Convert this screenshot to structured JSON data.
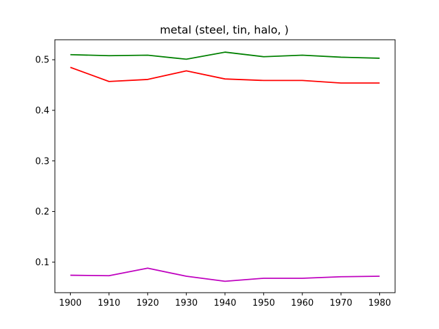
{
  "chart_data": {
    "type": "line",
    "title": "metal (steel, tin, halo, )",
    "xlabel": "",
    "ylabel": "",
    "x": [
      1900,
      1910,
      1920,
      1930,
      1940,
      1950,
      1960,
      1970,
      1980
    ],
    "x_ticks": [
      "1900",
      "1910",
      "1920",
      "1930",
      "1940",
      "1950",
      "1960",
      "1970",
      "1980"
    ],
    "y_ticks": [
      "0.1",
      "0.2",
      "0.3",
      "0.4",
      "0.5"
    ],
    "xlim": [
      1896,
      1984
    ],
    "ylim": [
      0.0395,
      0.5395
    ],
    "grid": false,
    "series": [
      {
        "color": "#008000",
        "values": [
          0.51,
          0.508,
          0.509,
          0.501,
          0.515,
          0.506,
          0.509,
          0.505,
          0.503
        ]
      },
      {
        "color": "#ff0000",
        "values": [
          0.485,
          0.457,
          0.461,
          0.478,
          0.462,
          0.459,
          0.459,
          0.454,
          0.454
        ]
      },
      {
        "color": "#bf00bf",
        "values": [
          0.074,
          0.073,
          0.088,
          0.072,
          0.062,
          0.068,
          0.068,
          0.071,
          0.072
        ]
      }
    ]
  }
}
